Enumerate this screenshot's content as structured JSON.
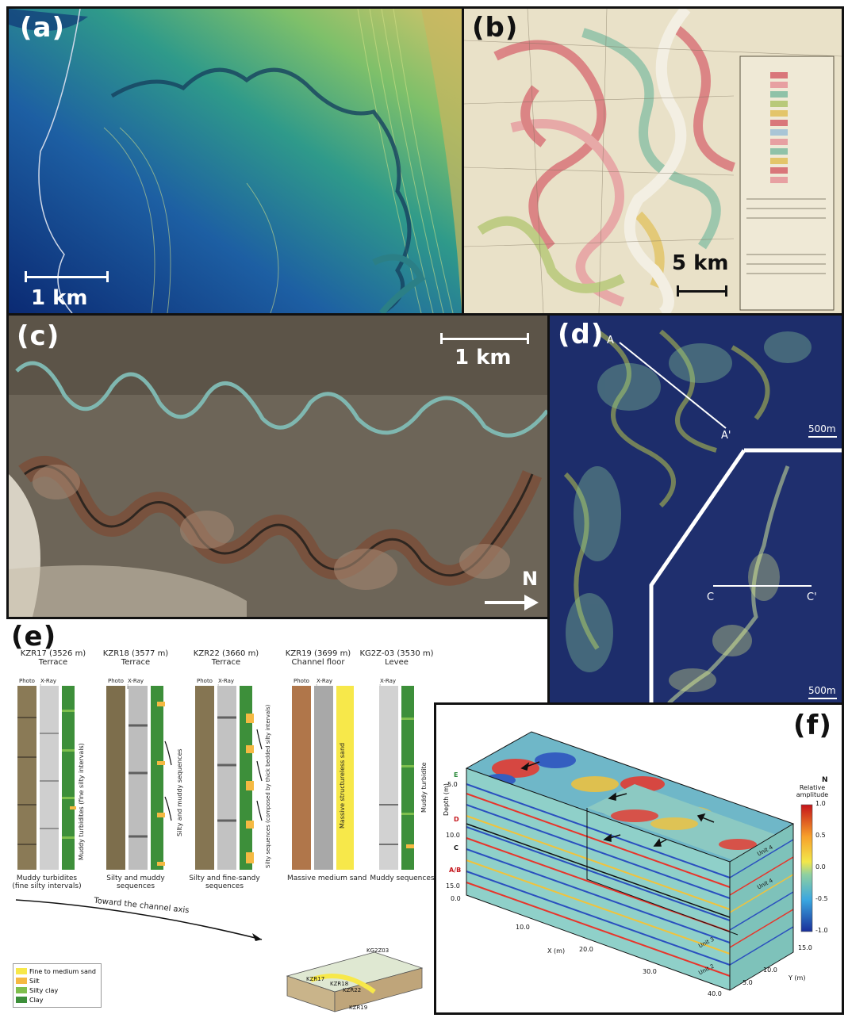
{
  "panel_a": {
    "label": "(a)",
    "scale": "1 km"
  },
  "panel_b": {
    "label": "(b)",
    "scale": "5 km"
  },
  "panel_c": {
    "label": "(c)",
    "scale": "1 km",
    "north": "N"
  },
  "panel_d": {
    "label": "(d)",
    "scale_top": "500m",
    "scale_bottom": "500m",
    "sec_a_start": "A",
    "sec_a_end": "A'",
    "sec_c_start": "C",
    "sec_c_end": "C'"
  },
  "panel_e": {
    "label": "(e)",
    "cores": [
      {
        "name": "KZR17 (3526 m)",
        "setting": "Terrace",
        "caption": "Muddy turbidites (fine silty intervals)",
        "annotation": "Muddy turbidites (fine silty intervals)"
      },
      {
        "name": "KZR18 (3577 m)",
        "setting": "Terrace",
        "caption": "Silty and muddy sequences",
        "annotation": "Silty and muddy sequences"
      },
      {
        "name": "KZR22 (3660 m)",
        "setting": "Terrace",
        "caption": "Silty and fine-sandy sequences",
        "annotation": "Silty sequences (composed by thick bedded silty intervals)"
      },
      {
        "name": "KZR19 (3699 m)",
        "setting": "Channel floor",
        "caption": "Massive medium sand",
        "annotation": "Massive structureless sand"
      },
      {
        "name": "KG2Z-03 (3530 m)",
        "setting": "Levee",
        "caption": "Muddy sequences",
        "annotation": "Muddy turbidite"
      }
    ],
    "col_photo": "Photo",
    "col_xray": "X-Ray image",
    "arrow_text": "Toward the channel axis",
    "legend": [
      {
        "label": "Fine to medium sand",
        "color": "#f7e84a"
      },
      {
        "label": "Silt",
        "color": "#f5b942"
      },
      {
        "label": "Silty clay",
        "color": "#7fbf4d"
      },
      {
        "label": "Clay",
        "color": "#3d8f3a"
      }
    ],
    "block_labels": [
      "KG2Z03",
      "KZR17",
      "KZR18",
      "KZR22",
      "KZR19"
    ]
  },
  "panel_f": {
    "label": "(f)",
    "colorbar_title": "Relative amplitude",
    "colorbar_ticks": [
      "1.0",
      "0.5",
      "0.0",
      "-0.5",
      "-1.0"
    ],
    "depth_label": "Depth (m)",
    "depth_ticks": [
      "5.0",
      "10.0",
      "15.0"
    ],
    "x_label": "X (m)",
    "x_ticks": [
      "10.0",
      "20.0",
      "30.0",
      "40.0"
    ],
    "y_label": "Y (m)",
    "y_ticks": [
      "5.0",
      "10.0",
      "15.0"
    ],
    "horizons": [
      "E",
      "D",
      "C",
      "A/B"
    ],
    "units": [
      "Unit 4",
      "Unit 4",
      "Unit 3",
      "Unit 2"
    ],
    "north": "N",
    "origin": "0.0"
  }
}
